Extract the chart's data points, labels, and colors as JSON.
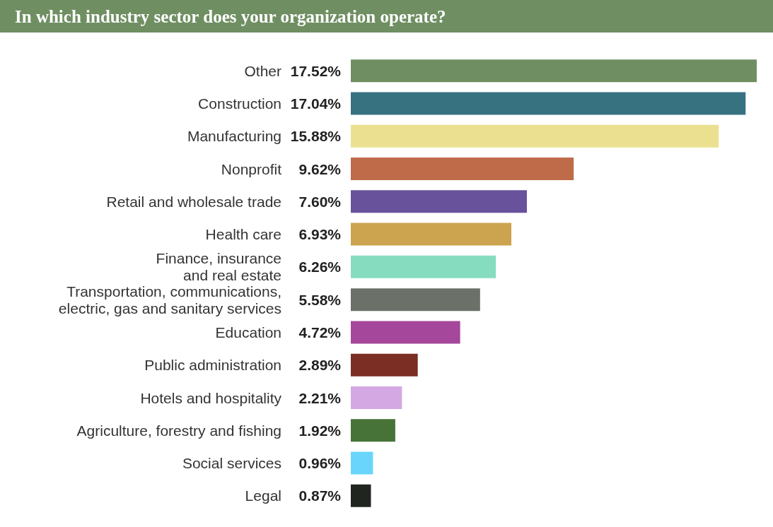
{
  "chart_data": {
    "type": "bar",
    "orientation": "horizontal",
    "title": "In which industry sector does your organization operate?",
    "categories": [
      "Other",
      "Construction",
      "Manufacturing",
      "Nonprofit",
      "Retail and wholesale trade",
      "Health care",
      "Finance, insurance\nand real estate",
      "Transportation, communications,\nelectric, gas and sanitary services",
      "Education",
      "Public administration",
      "Hotels and hospitality",
      "Agriculture, forestry and fishing",
      "Social services",
      "Legal"
    ],
    "values": [
      17.52,
      17.04,
      15.88,
      9.62,
      7.6,
      6.93,
      6.26,
      5.58,
      4.72,
      2.89,
      2.21,
      1.92,
      0.96,
      0.87
    ],
    "value_labels": [
      "17.52%",
      "17.04%",
      "15.88%",
      "9.62%",
      "7.60%",
      "6.93%",
      "6.26%",
      "5.58%",
      "4.72%",
      "2.89%",
      "2.21%",
      "1.92%",
      "0.96%",
      "0.87%"
    ],
    "colors": [
      "#6f8f62",
      "#377280",
      "#ebe08f",
      "#bf6b4a",
      "#68529b",
      "#cca34e",
      "#86dcbf",
      "#6b7168",
      "#a5479a",
      "#7a2e24",
      "#d4a8e2",
      "#477338",
      "#69d5fc",
      "#212520"
    ]
  }
}
